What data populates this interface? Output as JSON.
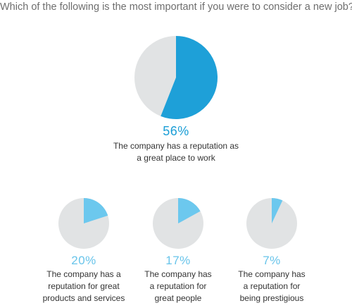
{
  "question": "Which of the following is the most important if you were to consider a new job?",
  "colors": {
    "main_slice": "#1ea0d8",
    "small_slice": "#6cc8ee",
    "remainder": "#e1e3e4",
    "pct_main": "#1b9ed6",
    "pct_small": "#68c4ea"
  },
  "chart_data": [
    {
      "type": "pie",
      "title": "",
      "percent_label": "56%",
      "value": 56,
      "description_lines": [
        "The company has a reputation as",
        "a great place to work"
      ]
    },
    {
      "type": "pie",
      "title": "",
      "percent_label": "20%",
      "value": 20,
      "description_lines": [
        "The company has a",
        "reputation for great",
        "products and services"
      ]
    },
    {
      "type": "pie",
      "title": "",
      "percent_label": "17%",
      "value": 17,
      "description_lines": [
        "The company has",
        "a reputation for",
        "great people"
      ]
    },
    {
      "type": "pie",
      "title": "",
      "percent_label": "7%",
      "value": 7,
      "description_lines": [
        "The company has",
        "a reputation for",
        "being prestigious"
      ]
    }
  ]
}
